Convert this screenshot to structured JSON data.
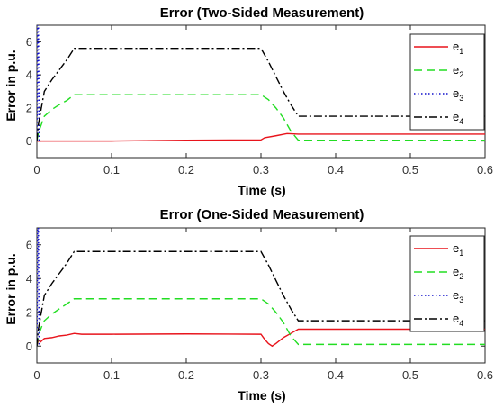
{
  "chart_data": [
    {
      "type": "line",
      "title": "Error (Two-Sided Measurement)",
      "xlabel": "Time (s)",
      "ylabel": "Error in p.u.",
      "xlim": [
        0,
        0.6
      ],
      "ylim": [
        -1,
        7
      ],
      "xticks": [
        "0",
        "0.1",
        "0.2",
        "0.3",
        "0.4",
        "0.5",
        "0.6"
      ],
      "yticks": [
        "0",
        "2",
        "4",
        "6"
      ],
      "legend_position": "top-right",
      "grid": false,
      "series": [
        {
          "name": "e1",
          "name_main": "e",
          "name_sub": "1",
          "color": "#e8141c",
          "dash": "solid",
          "x": [
            0,
            0.05,
            0.1,
            0.2,
            0.3,
            0.305,
            0.32,
            0.335,
            0.35,
            0.6
          ],
          "y": [
            0.0,
            0.0,
            0.0,
            0.05,
            0.07,
            0.2,
            0.32,
            0.45,
            0.42,
            0.42
          ]
        },
        {
          "name": "e2",
          "name_main": "e",
          "name_sub": "2",
          "color": "#22dd22",
          "dash": "dashed",
          "x": [
            0,
            0.002,
            0.006,
            0.01,
            0.02,
            0.03,
            0.04,
            0.05,
            0.3,
            0.31,
            0.32,
            0.33,
            0.34,
            0.35,
            0.6
          ],
          "y": [
            0,
            0.5,
            1.0,
            1.5,
            1.9,
            2.2,
            2.45,
            2.8,
            2.8,
            2.5,
            2.0,
            1.4,
            0.6,
            0.05,
            0.05
          ]
        },
        {
          "name": "e3",
          "name_main": "e",
          "name_sub": "3",
          "color": "#1010cc",
          "dash": "dotted",
          "x": [
            0,
            0.0005,
            0.001,
            0.002,
            0.003
          ],
          "y": [
            0,
            3.0,
            7.0,
            7.0,
            0.0
          ]
        },
        {
          "name": "e4",
          "name_main": "e",
          "name_sub": "4",
          "color": "#000000",
          "dash": "dashdot",
          "x": [
            0,
            0.002,
            0.006,
            0.01,
            0.02,
            0.03,
            0.04,
            0.05,
            0.3,
            0.31,
            0.32,
            0.33,
            0.34,
            0.35,
            0.6
          ],
          "y": [
            0,
            1.0,
            2.0,
            3.0,
            3.7,
            4.3,
            4.9,
            5.6,
            5.6,
            4.8,
            3.9,
            3.0,
            2.2,
            1.5,
            1.5
          ]
        }
      ]
    },
    {
      "type": "line",
      "title": "Error (One-Sided Measurement)",
      "xlabel": "Time (s)",
      "ylabel": "Error in p.u.",
      "xlim": [
        0,
        0.6
      ],
      "ylim": [
        -1,
        7
      ],
      "xticks": [
        "0",
        "0.1",
        "0.2",
        "0.3",
        "0.4",
        "0.5",
        "0.6"
      ],
      "yticks": [
        "0",
        "2",
        "4",
        "6"
      ],
      "legend_position": "top-right",
      "grid": false,
      "series": [
        {
          "name": "e1",
          "name_main": "e",
          "name_sub": "1",
          "color": "#e8141c",
          "dash": "solid",
          "x": [
            0,
            0.002,
            0.005,
            0.01,
            0.02,
            0.03,
            0.04,
            0.05,
            0.06,
            0.1,
            0.2,
            0.3,
            0.305,
            0.31,
            0.315,
            0.32,
            0.33,
            0.34,
            0.35,
            0.6
          ],
          "y": [
            0,
            0.35,
            0.25,
            0.45,
            0.5,
            0.6,
            0.65,
            0.75,
            0.7,
            0.7,
            0.72,
            0.7,
            0.4,
            0.15,
            0.0,
            0.15,
            0.5,
            0.75,
            1.0,
            1.0
          ]
        },
        {
          "name": "e2",
          "name_main": "e",
          "name_sub": "2",
          "color": "#22dd22",
          "dash": "dashed",
          "x": [
            0,
            0.002,
            0.006,
            0.01,
            0.02,
            0.03,
            0.04,
            0.05,
            0.3,
            0.31,
            0.32,
            0.33,
            0.34,
            0.35,
            0.6
          ],
          "y": [
            0,
            0.6,
            1.1,
            1.5,
            1.9,
            2.2,
            2.5,
            2.8,
            2.8,
            2.5,
            2.0,
            1.4,
            0.6,
            0.1,
            0.1
          ]
        },
        {
          "name": "e3",
          "name_main": "e",
          "name_sub": "3",
          "color": "#1010cc",
          "dash": "dotted",
          "x": [
            0,
            0.0005,
            0.001,
            0.002,
            0.003
          ],
          "y": [
            0,
            3.0,
            7.0,
            7.0,
            0.0
          ]
        },
        {
          "name": "e4",
          "name_main": "e",
          "name_sub": "4",
          "color": "#000000",
          "dash": "dashdot",
          "x": [
            0,
            0.002,
            0.006,
            0.01,
            0.02,
            0.03,
            0.04,
            0.05,
            0.3,
            0.31,
            0.32,
            0.33,
            0.34,
            0.35,
            0.6
          ],
          "y": [
            0,
            1.0,
            2.0,
            3.0,
            3.7,
            4.3,
            4.9,
            5.6,
            5.6,
            4.8,
            3.9,
            3.0,
            2.2,
            1.5,
            1.5
          ]
        }
      ]
    }
  ]
}
